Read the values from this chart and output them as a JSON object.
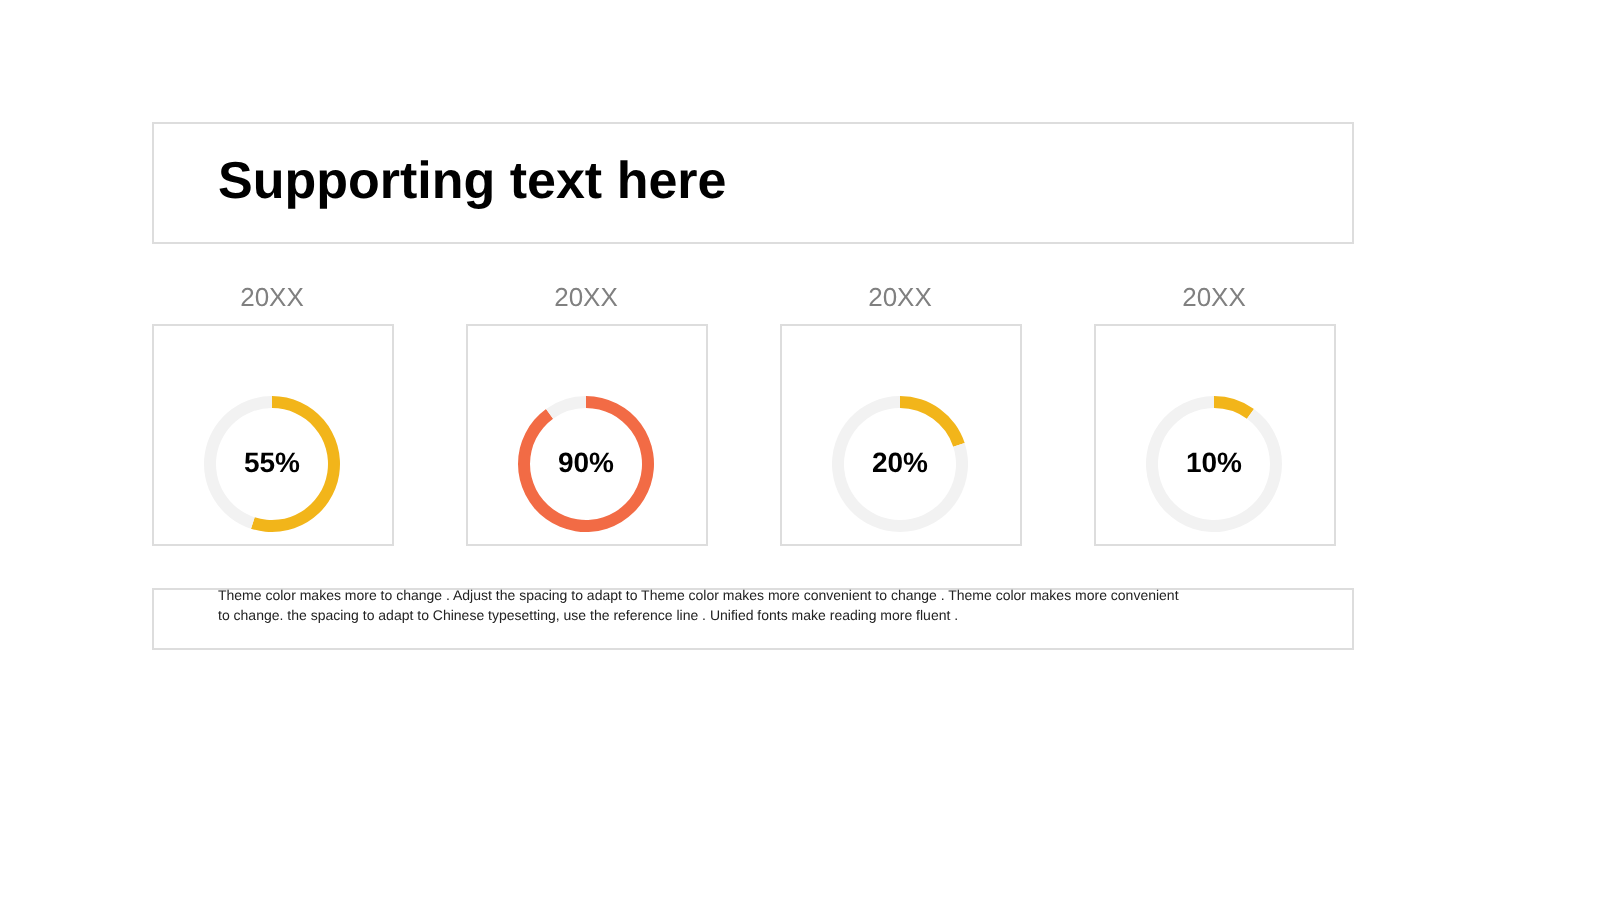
{
  "chart_data": [
    {
      "type": "other",
      "title": "Supporting text here"
    },
    {
      "type": "donut",
      "title": "20XX",
      "categories": [
        null,
        null
      ],
      "values": [
        55,
        45
      ],
      "colors": [
        "#f2b51a",
        "#f2f2f2"
      ],
      "value_labels": [
        "55%",
        null
      ]
    },
    {
      "type": "donut",
      "title": "20XX",
      "categories": [
        null,
        null
      ],
      "values": [
        90,
        10
      ],
      "colors": [
        "#f26b45",
        "#f2f2f2"
      ],
      "value_labels": [
        "90%",
        null
      ]
    },
    {
      "type": "donut",
      "title": "20XX",
      "categories": [
        null,
        null
      ],
      "values": [
        20,
        80
      ],
      "colors": [
        "#f2b51a",
        "#f2f2f2"
      ],
      "value_labels": [
        "20%",
        null
      ]
    },
    {
      "type": "donut",
      "title": "20XX",
      "categories": [
        null,
        null
      ],
      "values": [
        10,
        90
      ],
      "colors": [
        "#f2b51a",
        "#f2f2f2"
      ],
      "value_labels": [
        "10%",
        null
      ]
    },
    {
      "type": "other",
      "annotations": [
        "Theme  color makes more to change . Adjust the spacing to adapt to Theme  color makes more convenient to change . Theme  color makes more convenient to change. the spacing to adapt to Chinese typesetting, use the reference line . Unified fonts make reading more fluent ."
      ]
    }
  ]
}
